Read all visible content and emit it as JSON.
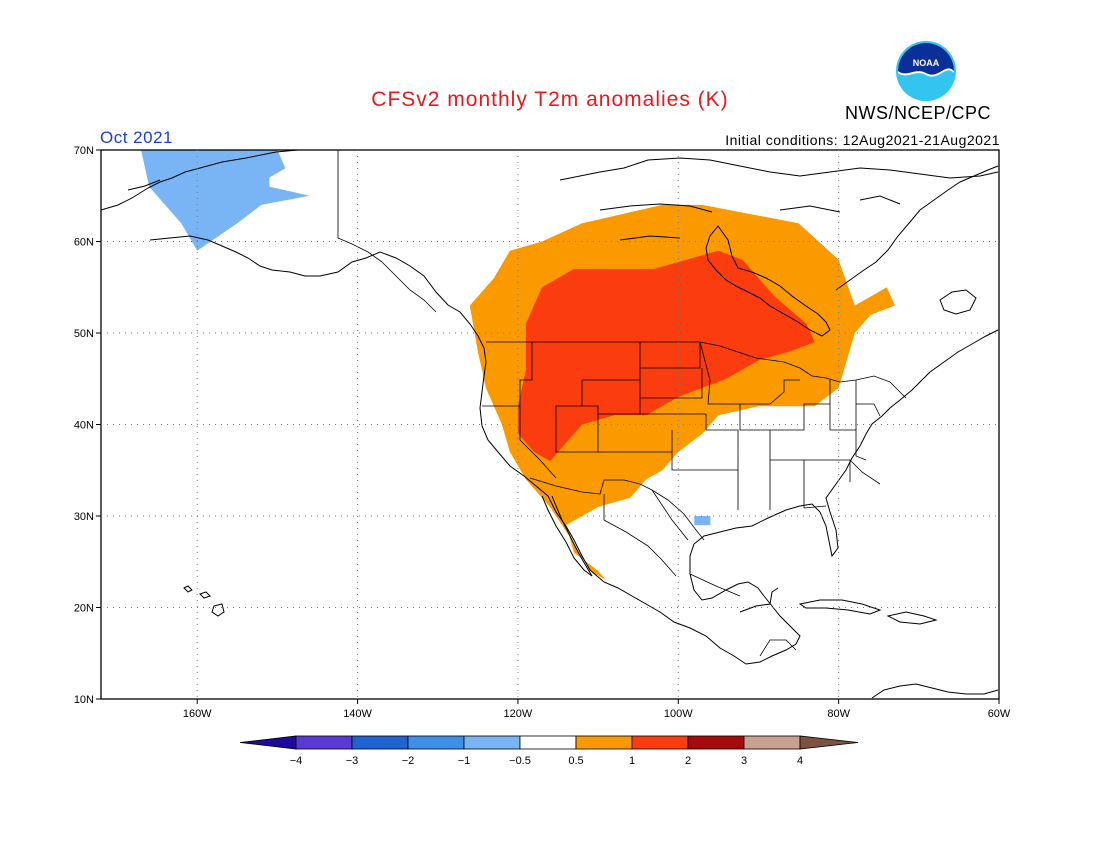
{
  "title": "CFSv2 monthly T2m anomalies (K)",
  "period": "Oct 2021",
  "initial_conditions": "Initial conditions: 12Aug2021-21Aug2021",
  "agency": "NWS/NCEP/CPC",
  "logo_text": "NOAA",
  "map": {
    "lon_range": [
      -172,
      -60
    ],
    "lat_range": [
      10,
      70
    ],
    "lat_ticks": [
      {
        "value": 70,
        "label": "70N"
      },
      {
        "value": 60,
        "label": "60N"
      },
      {
        "value": 50,
        "label": "50N"
      },
      {
        "value": 40,
        "label": "40N"
      },
      {
        "value": 30,
        "label": "30N"
      },
      {
        "value": 20,
        "label": "20N"
      },
      {
        "value": 10,
        "label": "10N"
      }
    ],
    "lon_ticks": [
      {
        "value": -160,
        "label": "160W"
      },
      {
        "value": -140,
        "label": "140W"
      },
      {
        "value": -120,
        "label": "120W"
      },
      {
        "value": -100,
        "label": "100W"
      },
      {
        "value": -80,
        "label": "80W"
      },
      {
        "value": -60,
        "label": "60W"
      }
    ],
    "grid": "dotted"
  },
  "colorbar": {
    "colors": [
      "#1f0a9e",
      "#5a3ad4",
      "#1f63d0",
      "#3f8fe8",
      "#79b5f4",
      "#ffffff",
      "#fa9a00",
      "#fa3c0e",
      "#a50b0b",
      "#c9a191",
      "#7d5242"
    ],
    "labels": [
      "−4",
      "−3",
      "−2",
      "−1",
      "−0.5",
      "0.5",
      "1",
      "2",
      "3",
      "4"
    ]
  },
  "anomaly_regions": [
    {
      "level": "-0.5 to -1",
      "color": "#79b5f4",
      "points": [
        [
          -167,
          70
        ],
        [
          -150,
          70
        ],
        [
          -149,
          68
        ],
        [
          -151,
          67
        ],
        [
          -151,
          66
        ],
        [
          -146,
          65
        ],
        [
          -152,
          64
        ],
        [
          -155,
          62
        ],
        [
          -160,
          59
        ],
        [
          -162,
          62
        ],
        [
          -164,
          64
        ],
        [
          -166,
          66
        ]
      ]
    },
    {
      "level": "-0.5 to -1",
      "color": "#79b5f4",
      "points": [
        [
          -98,
          30
        ],
        [
          -96,
          30
        ],
        [
          -96,
          29
        ],
        [
          -98,
          29
        ]
      ]
    },
    {
      "level": "0.5 to 1",
      "color": "#fa9a00",
      "points": [
        [
          -126,
          53
        ],
        [
          -123,
          56
        ],
        [
          -121,
          59
        ],
        [
          -117,
          60
        ],
        [
          -112,
          62
        ],
        [
          -107,
          63
        ],
        [
          -102,
          64
        ],
        [
          -97,
          64
        ],
        [
          -91,
          63
        ],
        [
          -85,
          62
        ],
        [
          -80,
          58
        ],
        [
          -78,
          53
        ],
        [
          -74,
          55
        ],
        [
          -73,
          53
        ],
        [
          -76,
          52
        ],
        [
          -78,
          50
        ],
        [
          -79,
          47
        ],
        [
          -80,
          44
        ],
        [
          -83,
          42
        ],
        [
          -90,
          42
        ],
        [
          -95,
          41
        ],
        [
          -97,
          39
        ],
        [
          -100,
          37
        ],
        [
          -102,
          35
        ],
        [
          -104,
          34
        ],
        [
          -106,
          32
        ],
        [
          -110,
          31
        ],
        [
          -112,
          30
        ],
        [
          -114,
          29
        ],
        [
          -113,
          26
        ],
        [
          -110,
          24
        ],
        [
          -109,
          23
        ],
        [
          -111,
          24
        ],
        [
          -113,
          27
        ],
        [
          -116,
          31
        ],
        [
          -119,
          34
        ],
        [
          -121,
          37
        ],
        [
          -122,
          40
        ],
        [
          -124,
          44
        ],
        [
          -125,
          48
        ]
      ]
    },
    {
      "level": "1 to 2",
      "color": "#fa3c0e",
      "points": [
        [
          -117,
          55
        ],
        [
          -113,
          57
        ],
        [
          -108,
          57
        ],
        [
          -103,
          57
        ],
        [
          -99,
          58
        ],
        [
          -95,
          59
        ],
        [
          -92,
          58
        ],
        [
          -90,
          56
        ],
        [
          -88,
          54
        ],
        [
          -84,
          51
        ],
        [
          -83,
          49
        ],
        [
          -86,
          48
        ],
        [
          -90,
          47
        ],
        [
          -94,
          45
        ],
        [
          -97,
          44
        ],
        [
          -100,
          43
        ],
        [
          -104,
          41
        ],
        [
          -108,
          41
        ],
        [
          -112,
          40
        ],
        [
          -114,
          38
        ],
        [
          -116,
          36
        ],
        [
          -118,
          37
        ],
        [
          -120,
          39
        ],
        [
          -120,
          42
        ],
        [
          -119,
          46
        ],
        [
          -119,
          51
        ]
      ]
    }
  ],
  "states_note": "State and national boundaries drawn as outlines"
}
